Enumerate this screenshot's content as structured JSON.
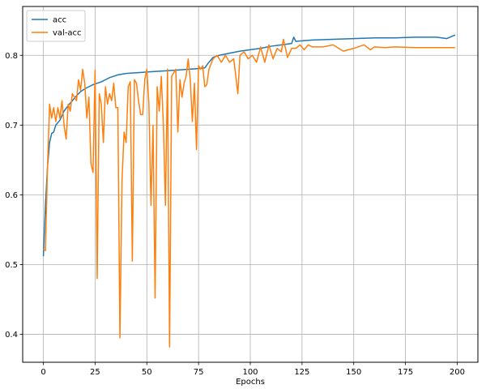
{
  "chart_data": {
    "type": "line",
    "xlabel": "Epochs",
    "ylabel": "",
    "xlim": [
      -10,
      210
    ],
    "ylim": [
      0.36,
      0.87
    ],
    "xticks": [
      0,
      25,
      50,
      75,
      100,
      125,
      150,
      175,
      200
    ],
    "yticks": [
      0.4,
      0.5,
      0.6,
      0.7,
      0.8
    ],
    "grid": true,
    "legend_position": "top-left",
    "series": [
      {
        "name": "acc",
        "color": "#1f77b4",
        "points": [
          [
            0,
            0.512
          ],
          [
            1,
            0.585
          ],
          [
            2,
            0.64
          ],
          [
            3,
            0.675
          ],
          [
            4,
            0.688
          ],
          [
            5,
            0.69
          ],
          [
            6,
            0.7
          ],
          [
            8,
            0.707
          ],
          [
            10,
            0.72
          ],
          [
            12,
            0.728
          ],
          [
            14,
            0.735
          ],
          [
            16,
            0.742
          ],
          [
            18,
            0.748
          ],
          [
            20,
            0.752
          ],
          [
            22,
            0.755
          ],
          [
            24,
            0.758
          ],
          [
            26,
            0.76
          ],
          [
            28,
            0.762
          ],
          [
            30,
            0.765
          ],
          [
            32,
            0.768
          ],
          [
            34,
            0.77
          ],
          [
            36,
            0.772
          ],
          [
            40,
            0.774
          ],
          [
            45,
            0.775
          ],
          [
            50,
            0.776
          ],
          [
            55,
            0.777
          ],
          [
            60,
            0.778
          ],
          [
            65,
            0.779
          ],
          [
            70,
            0.78
          ],
          [
            75,
            0.781
          ],
          [
            78,
            0.782
          ],
          [
            80,
            0.79
          ],
          [
            82,
            0.797
          ],
          [
            85,
            0.8
          ],
          [
            90,
            0.803
          ],
          [
            95,
            0.806
          ],
          [
            100,
            0.808
          ],
          [
            105,
            0.81
          ],
          [
            110,
            0.813
          ],
          [
            115,
            0.815
          ],
          [
            120,
            0.817
          ],
          [
            121,
            0.826
          ],
          [
            122,
            0.82
          ],
          [
            130,
            0.822
          ],
          [
            140,
            0.823
          ],
          [
            150,
            0.824
          ],
          [
            160,
            0.825
          ],
          [
            170,
            0.825
          ],
          [
            180,
            0.826
          ],
          [
            190,
            0.826
          ],
          [
            195,
            0.824
          ],
          [
            198,
            0.828
          ],
          [
            199,
            0.829
          ]
        ]
      },
      {
        "name": "val-acc",
        "color": "#ff7f0e",
        "points": [
          [
            0,
            0.522
          ],
          [
            1,
            0.52
          ],
          [
            2,
            0.64
          ],
          [
            3,
            0.73
          ],
          [
            4,
            0.71
          ],
          [
            5,
            0.725
          ],
          [
            6,
            0.705
          ],
          [
            7,
            0.725
          ],
          [
            8,
            0.71
          ],
          [
            9,
            0.735
          ],
          [
            10,
            0.7
          ],
          [
            11,
            0.68
          ],
          [
            12,
            0.73
          ],
          [
            13,
            0.72
          ],
          [
            14,
            0.745
          ],
          [
            15,
            0.74
          ],
          [
            16,
            0.735
          ],
          [
            17,
            0.765
          ],
          [
            18,
            0.75
          ],
          [
            19,
            0.78
          ],
          [
            20,
            0.76
          ],
          [
            21,
            0.71
          ],
          [
            22,
            0.74
          ],
          [
            23,
            0.645
          ],
          [
            24,
            0.632
          ],
          [
            25,
            0.779
          ],
          [
            26,
            0.48
          ],
          [
            27,
            0.745
          ],
          [
            28,
            0.73
          ],
          [
            29,
            0.675
          ],
          [
            30,
            0.755
          ],
          [
            31,
            0.73
          ],
          [
            32,
            0.745
          ],
          [
            33,
            0.735
          ],
          [
            34,
            0.76
          ],
          [
            35,
            0.725
          ],
          [
            36,
            0.725
          ],
          [
            37,
            0.395
          ],
          [
            38,
            0.62
          ],
          [
            39,
            0.69
          ],
          [
            40,
            0.675
          ],
          [
            41,
            0.755
          ],
          [
            42,
            0.762
          ],
          [
            43,
            0.505
          ],
          [
            44,
            0.765
          ],
          [
            45,
            0.76
          ],
          [
            46,
            0.735
          ],
          [
            47,
            0.715
          ],
          [
            48,
            0.715
          ],
          [
            49,
            0.765
          ],
          [
            50,
            0.78
          ],
          [
            51,
            0.73
          ],
          [
            52,
            0.585
          ],
          [
            53,
            0.7
          ],
          [
            54,
            0.452
          ],
          [
            55,
            0.755
          ],
          [
            56,
            0.72
          ],
          [
            57,
            0.77
          ],
          [
            58,
            0.7
          ],
          [
            59,
            0.585
          ],
          [
            60,
            0.78
          ],
          [
            61,
            0.382
          ],
          [
            62,
            0.77
          ],
          [
            63,
            0.775
          ],
          [
            64,
            0.78
          ],
          [
            65,
            0.69
          ],
          [
            66,
            0.765
          ],
          [
            67,
            0.74
          ],
          [
            68,
            0.76
          ],
          [
            69,
            0.77
          ],
          [
            70,
            0.795
          ],
          [
            71,
            0.765
          ],
          [
            72,
            0.705
          ],
          [
            73,
            0.76
          ],
          [
            74,
            0.665
          ],
          [
            75,
            0.785
          ],
          [
            76,
            0.78
          ],
          [
            77,
            0.785
          ],
          [
            78,
            0.755
          ],
          [
            79,
            0.758
          ],
          [
            80,
            0.78
          ],
          [
            82,
            0.795
          ],
          [
            84,
            0.8
          ],
          [
            86,
            0.79
          ],
          [
            88,
            0.8
          ],
          [
            90,
            0.79
          ],
          [
            92,
            0.795
          ],
          [
            94,
            0.745
          ],
          [
            95,
            0.8
          ],
          [
            97,
            0.805
          ],
          [
            99,
            0.795
          ],
          [
            101,
            0.8
          ],
          [
            103,
            0.79
          ],
          [
            105,
            0.812
          ],
          [
            107,
            0.79
          ],
          [
            109,
            0.815
          ],
          [
            111,
            0.795
          ],
          [
            113,
            0.81
          ],
          [
            115,
            0.805
          ],
          [
            116,
            0.823
          ],
          [
            118,
            0.797
          ],
          [
            120,
            0.81
          ],
          [
            122,
            0.81
          ],
          [
            124,
            0.815
          ],
          [
            126,
            0.808
          ],
          [
            128,
            0.815
          ],
          [
            130,
            0.812
          ],
          [
            135,
            0.812
          ],
          [
            140,
            0.815
          ],
          [
            145,
            0.806
          ],
          [
            150,
            0.81
          ],
          [
            155,
            0.815
          ],
          [
            158,
            0.808
          ],
          [
            160,
            0.812
          ],
          [
            165,
            0.811
          ],
          [
            170,
            0.812
          ],
          [
            180,
            0.811
          ],
          [
            190,
            0.811
          ],
          [
            199,
            0.811
          ]
        ]
      }
    ]
  }
}
